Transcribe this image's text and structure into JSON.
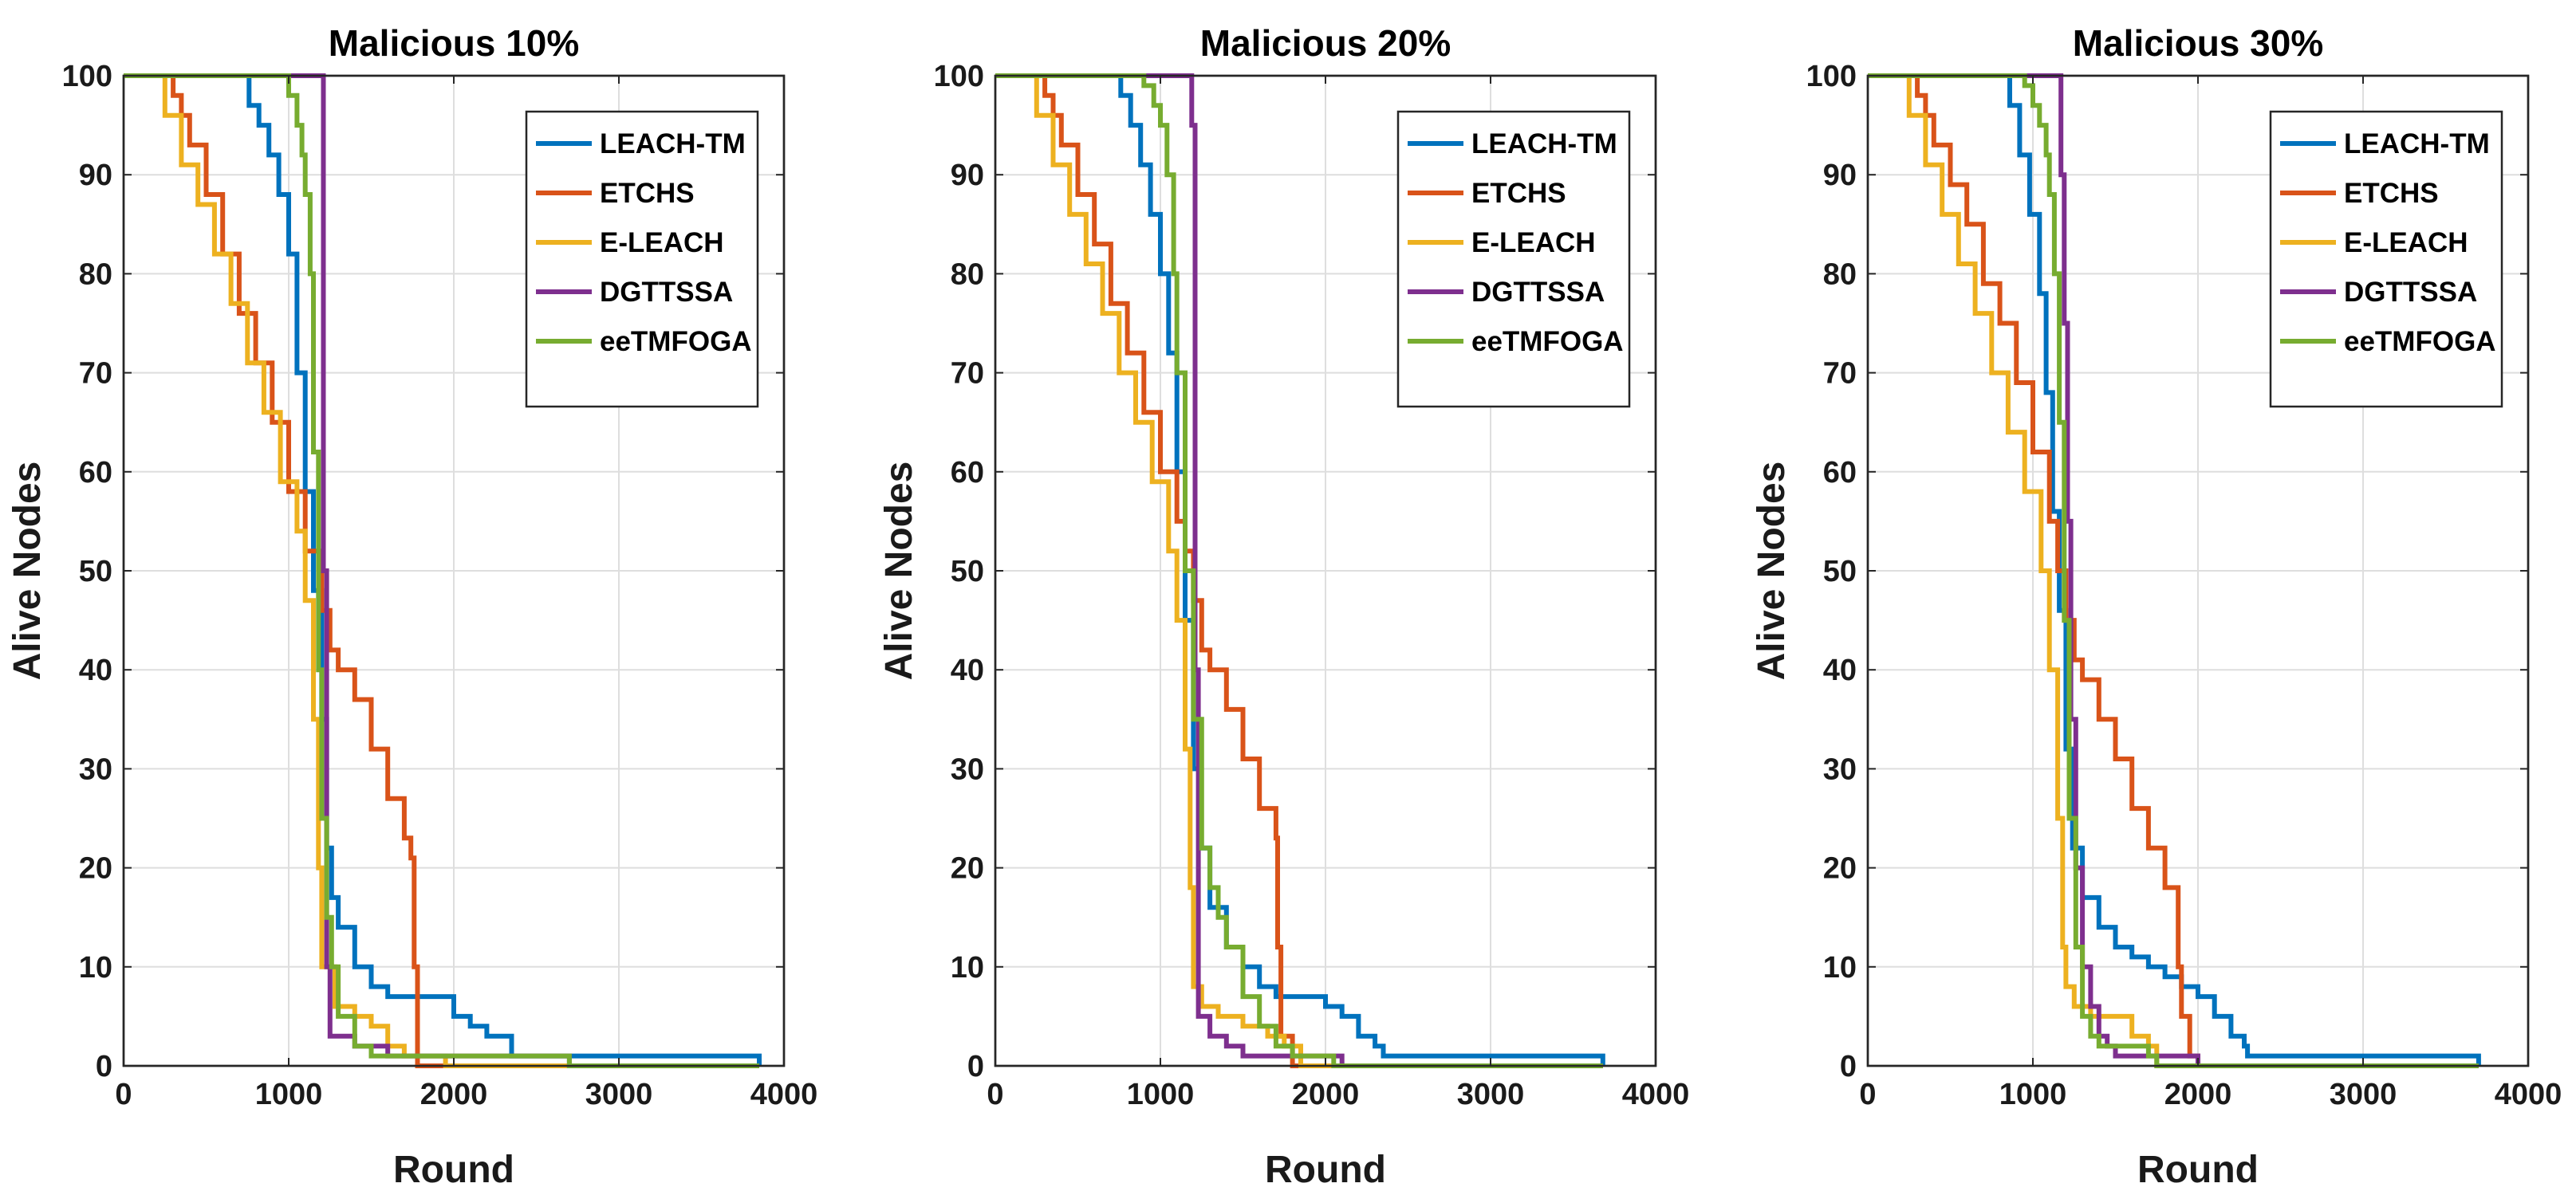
{
  "chart_data": [
    {
      "type": "line",
      "title": "Malicious 10%",
      "xlabel": "Round",
      "ylabel": "Alive Nodes",
      "xlim": [
        0,
        4000
      ],
      "ylim": [
        0,
        100
      ],
      "xticks": [
        0,
        1000,
        2000,
        3000,
        4000
      ],
      "yticks": [
        0,
        10,
        20,
        30,
        40,
        50,
        60,
        70,
        80,
        90,
        100
      ],
      "grid": true,
      "legend_location": "top-right",
      "series": [
        {
          "name": "LEACH-TM",
          "color": "#0072BD",
          "x": [
            0,
            700,
            760,
            820,
            880,
            940,
            1000,
            1050,
            1100,
            1150,
            1200,
            1230,
            1260,
            1300,
            1400,
            1500,
            1600,
            1700,
            1800,
            2000,
            2100,
            2200,
            2350,
            2350,
            3850,
            3850
          ],
          "y": [
            100,
            100,
            97,
            95,
            92,
            88,
            82,
            70,
            58,
            48,
            35,
            22,
            17,
            14,
            10,
            8,
            7,
            7,
            7,
            5,
            4,
            3,
            2,
            1,
            1,
            0
          ]
        },
        {
          "name": "ETCHS",
          "color": "#D95319",
          "x": [
            0,
            250,
            300,
            350,
            400,
            500,
            600,
            700,
            800,
            900,
            1000,
            1100,
            1200,
            1250,
            1300,
            1400,
            1500,
            1600,
            1700,
            1740,
            1760,
            1780,
            3850
          ],
          "y": [
            100,
            100,
            98,
            96,
            93,
            88,
            82,
            76,
            71,
            65,
            58,
            52,
            46,
            42,
            40,
            37,
            32,
            27,
            23,
            21,
            10,
            0,
            0
          ]
        },
        {
          "name": "E-LEACH",
          "color": "#EDB120",
          "x": [
            0,
            150,
            250,
            350,
            450,
            550,
            650,
            750,
            850,
            950,
            1050,
            1100,
            1150,
            1180,
            1200,
            1280,
            1400,
            1500,
            1600,
            1700,
            1800,
            1950,
            3850
          ],
          "y": [
            100,
            100,
            96,
            91,
            87,
            82,
            77,
            71,
            66,
            59,
            54,
            47,
            35,
            20,
            10,
            6,
            5,
            4,
            2,
            1,
            1,
            0,
            0
          ]
        },
        {
          "name": "DGTTSSA",
          "color": "#7E2F8E",
          "x": [
            0,
            1200,
            1210,
            1230,
            1250,
            1350,
            1400,
            1500,
            1600,
            2700,
            2700,
            3850
          ],
          "y": [
            100,
            100,
            50,
            10,
            3,
            3,
            2,
            2,
            1,
            1,
            0,
            0
          ]
        },
        {
          "name": "eeTMFOGA",
          "color": "#77AC30",
          "x": [
            0,
            900,
            1000,
            1050,
            1080,
            1100,
            1130,
            1150,
            1180,
            1200,
            1230,
            1260,
            1300,
            1400,
            1500,
            1700,
            2700,
            2700,
            3850
          ],
          "y": [
            100,
            100,
            98,
            95,
            92,
            88,
            80,
            62,
            40,
            25,
            15,
            10,
            5,
            2,
            1,
            1,
            1,
            0,
            0
          ]
        }
      ]
    },
    {
      "type": "line",
      "title": "Malicious 20%",
      "xlabel": "Round",
      "ylabel": "Alive Nodes",
      "xlim": [
        0,
        4000
      ],
      "ylim": [
        0,
        100
      ],
      "xticks": [
        0,
        1000,
        2000,
        3000,
        4000
      ],
      "yticks": [
        0,
        10,
        20,
        30,
        40,
        50,
        60,
        70,
        80,
        90,
        100
      ],
      "grid": true,
      "legend_location": "top-right",
      "series": [
        {
          "name": "LEACH-TM",
          "color": "#0072BD",
          "x": [
            0,
            700,
            760,
            820,
            880,
            940,
            1000,
            1050,
            1100,
            1150,
            1200,
            1240,
            1300,
            1400,
            1500,
            1600,
            1700,
            1900,
            2000,
            2100,
            2200,
            2300,
            2350,
            3680,
            3680
          ],
          "y": [
            100,
            100,
            98,
            95,
            91,
            86,
            80,
            72,
            60,
            45,
            30,
            22,
            16,
            12,
            10,
            8,
            7,
            7,
            6,
            5,
            3,
            2,
            1,
            1,
            0
          ]
        },
        {
          "name": "ETCHS",
          "color": "#D95319",
          "x": [
            0,
            250,
            300,
            350,
            400,
            500,
            600,
            700,
            800,
            900,
            1000,
            1100,
            1150,
            1200,
            1250,
            1300,
            1400,
            1500,
            1600,
            1700,
            1710,
            1730,
            1800,
            3680
          ],
          "y": [
            100,
            100,
            98,
            96,
            93,
            88,
            83,
            77,
            72,
            66,
            60,
            55,
            52,
            47,
            42,
            40,
            36,
            31,
            26,
            23,
            12,
            3,
            0,
            0
          ]
        },
        {
          "name": "E-LEACH",
          "color": "#EDB120",
          "x": [
            0,
            150,
            250,
            350,
            450,
            550,
            650,
            750,
            850,
            950,
            1050,
            1100,
            1150,
            1180,
            1200,
            1250,
            1350,
            1500,
            1650,
            1750,
            1850,
            3680
          ],
          "y": [
            100,
            100,
            96,
            91,
            86,
            81,
            76,
            70,
            65,
            59,
            52,
            45,
            32,
            18,
            8,
            6,
            5,
            4,
            3,
            2,
            0,
            0
          ]
        },
        {
          "name": "DGTTSSA",
          "color": "#7E2F8E",
          "x": [
            0,
            1180,
            1190,
            1210,
            1230,
            1300,
            1400,
            1500,
            2100,
            2100,
            3680
          ],
          "y": [
            100,
            100,
            95,
            40,
            5,
            3,
            2,
            1,
            1,
            0,
            0
          ]
        },
        {
          "name": "eeTMFOGA",
          "color": "#77AC30",
          "x": [
            0,
            800,
            900,
            960,
            1000,
            1040,
            1080,
            1100,
            1150,
            1200,
            1250,
            1300,
            1350,
            1400,
            1500,
            1600,
            1700,
            1800,
            2050,
            2050,
            3680
          ],
          "y": [
            100,
            100,
            99,
            97,
            95,
            90,
            80,
            70,
            50,
            35,
            22,
            18,
            15,
            12,
            7,
            4,
            2,
            1,
            1,
            0,
            0
          ]
        }
      ]
    },
    {
      "type": "line",
      "title": "Malicious 30%",
      "xlabel": "Round",
      "ylabel": "Alive Nodes",
      "xlim": [
        0,
        4000
      ],
      "ylim": [
        0,
        100
      ],
      "xticks": [
        0,
        1000,
        2000,
        3000,
        4000
      ],
      "yticks": [
        0,
        10,
        20,
        30,
        40,
        50,
        60,
        70,
        80,
        90,
        100
      ],
      "grid": true,
      "legend_location": "top-right",
      "series": [
        {
          "name": "LEACH-TM",
          "color": "#0072BD",
          "x": [
            0,
            800,
            860,
            920,
            980,
            1040,
            1080,
            1120,
            1160,
            1200,
            1240,
            1300,
            1400,
            1500,
            1600,
            1700,
            1800,
            1900,
            2000,
            2100,
            2200,
            2280,
            2300,
            3700,
            3700
          ],
          "y": [
            100,
            100,
            97,
            92,
            86,
            78,
            68,
            56,
            46,
            32,
            22,
            17,
            14,
            12,
            11,
            10,
            9,
            8,
            7,
            5,
            3,
            2,
            1,
            1,
            0
          ]
        },
        {
          "name": "ETCHS",
          "color": "#D95319",
          "x": [
            0,
            250,
            300,
            350,
            400,
            500,
            600,
            700,
            800,
            900,
            1000,
            1100,
            1150,
            1200,
            1250,
            1300,
            1400,
            1500,
            1600,
            1700,
            1800,
            1880,
            1900,
            1950,
            2000,
            3700
          ],
          "y": [
            100,
            100,
            98,
            96,
            93,
            89,
            85,
            79,
            75,
            69,
            62,
            55,
            50,
            45,
            41,
            39,
            35,
            31,
            26,
            22,
            18,
            10,
            5,
            1,
            0,
            0
          ]
        },
        {
          "name": "E-LEACH",
          "color": "#EDB120",
          "x": [
            0,
            150,
            250,
            350,
            450,
            550,
            650,
            750,
            850,
            950,
            1050,
            1100,
            1150,
            1180,
            1200,
            1250,
            1350,
            1500,
            1600,
            1700,
            1750,
            3700
          ],
          "y": [
            100,
            100,
            96,
            91,
            86,
            81,
            76,
            70,
            64,
            58,
            50,
            40,
            25,
            12,
            8,
            6,
            5,
            5,
            3,
            2,
            0,
            0
          ]
        },
        {
          "name": "DGTTSSA",
          "color": "#7E2F8E",
          "x": [
            0,
            1150,
            1170,
            1190,
            1210,
            1230,
            1260,
            1300,
            1350,
            1400,
            1450,
            1500,
            1800,
            1900,
            2000,
            2000,
            3700
          ],
          "y": [
            100,
            100,
            90,
            75,
            55,
            35,
            20,
            10,
            6,
            3,
            2,
            1,
            1,
            1,
            1,
            0,
            0
          ]
        },
        {
          "name": "eeTMFOGA",
          "color": "#77AC30",
          "x": [
            0,
            850,
            950,
            1000,
            1040,
            1080,
            1100,
            1130,
            1160,
            1190,
            1220,
            1260,
            1300,
            1350,
            1400,
            1600,
            1700,
            1750,
            3700
          ],
          "y": [
            100,
            100,
            99,
            97,
            95,
            92,
            88,
            80,
            65,
            45,
            25,
            12,
            5,
            3,
            2,
            2,
            1,
            0,
            0
          ]
        }
      ]
    }
  ]
}
